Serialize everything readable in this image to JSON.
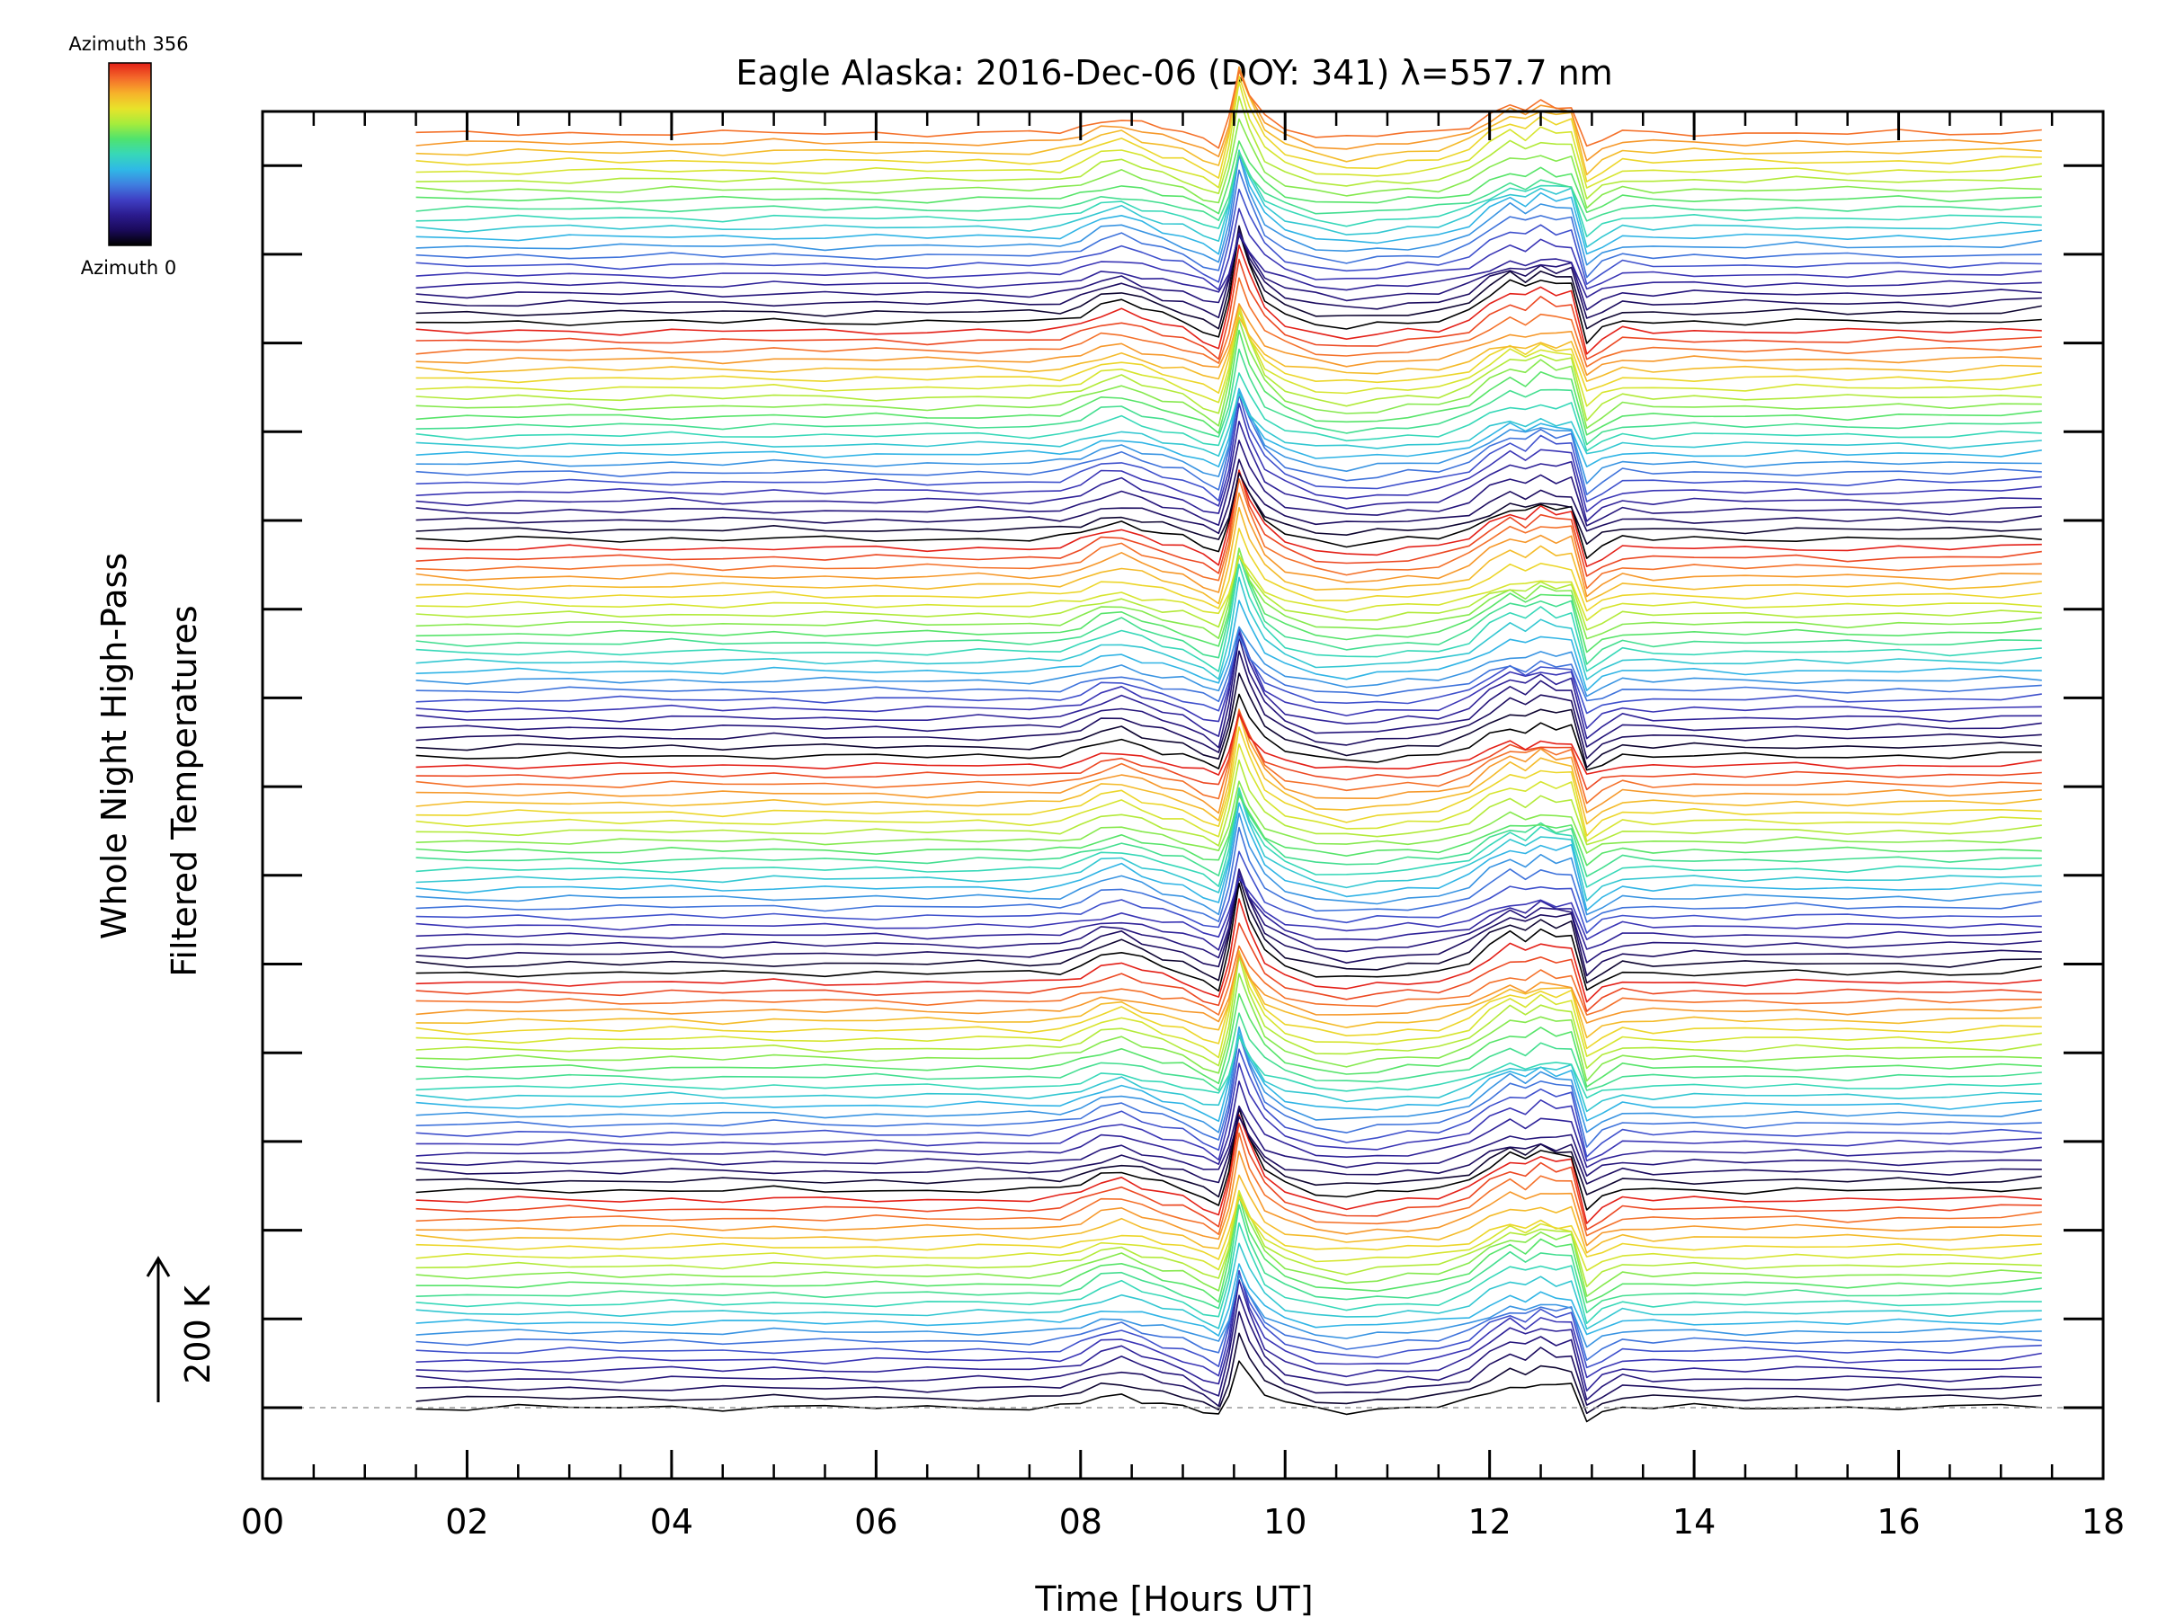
{
  "chart_data": {
    "type": "line",
    "title": "Eagle Alaska: 2016-Dec-06 (DOY: 341) λ=557.7 nm",
    "xlabel": "Time [Hours UT]",
    "ylabel_line1": "Whole Night High-Pass",
    "ylabel_line2": "Filtered Temperatures",
    "scale_label": "200 K",
    "scale_arrow_K": 200,
    "xlim": [
      0,
      18
    ],
    "x_tick_labels": [
      "00",
      "02",
      "04",
      "06",
      "08",
      "10",
      "12",
      "14",
      "16",
      "18"
    ],
    "x_ticks": [
      0,
      2,
      4,
      6,
      8,
      10,
      12,
      14,
      16,
      18
    ],
    "x_minor_step": 0.5,
    "y_major_tick_count": 15,
    "colorbar": {
      "label_top": "Azimuth 356",
      "label_bottom": "Azimuth 0",
      "min": 0,
      "max": 356,
      "colors": [
        "#000000",
        "#1a0a5a",
        "#2b1b8e",
        "#3f3fc4",
        "#3f7fe0",
        "#2fb9e6",
        "#37d8b8",
        "#4fe36e",
        "#a6ec3c",
        "#e8e32a",
        "#f7b22a",
        "#f46a2a",
        "#e32018"
      ]
    },
    "series_description": {
      "series_count": 136,
      "series_groups": 6,
      "series_per_group": 23,
      "time_start": 1.5,
      "time_end": 17.4,
      "baseline_dashed": true,
      "azimuth_per_series": "0-356 cycling per group"
    },
    "common_profile": {
      "x": [
        1.5,
        2.0,
        2.5,
        3.0,
        3.5,
        4.0,
        4.5,
        5.0,
        5.5,
        6.0,
        6.5,
        7.0,
        7.5,
        7.8,
        8.0,
        8.2,
        8.4,
        8.6,
        8.8,
        9.0,
        9.2,
        9.35,
        9.45,
        9.55,
        9.65,
        9.8,
        10.0,
        10.3,
        10.6,
        10.9,
        11.2,
        11.5,
        11.8,
        12.0,
        12.2,
        12.35,
        12.5,
        12.65,
        12.8,
        12.95,
        13.1,
        13.3,
        13.6,
        14.0,
        14.5,
        15.0,
        15.5,
        16.0,
        16.5,
        17.0,
        17.4
      ],
      "y_K": [
        0,
        -2,
        0,
        1,
        0,
        2,
        0,
        3,
        0,
        1,
        0,
        2,
        1,
        5,
        20,
        45,
        55,
        35,
        18,
        5,
        -20,
        -40,
        60,
        220,
        140,
        60,
        20,
        -5,
        -15,
        -8,
        0,
        5,
        30,
        70,
        100,
        85,
        110,
        95,
        100,
        -50,
        -20,
        5,
        0,
        2,
        0,
        3,
        0,
        2,
        0,
        5,
        10
      ]
    }
  }
}
